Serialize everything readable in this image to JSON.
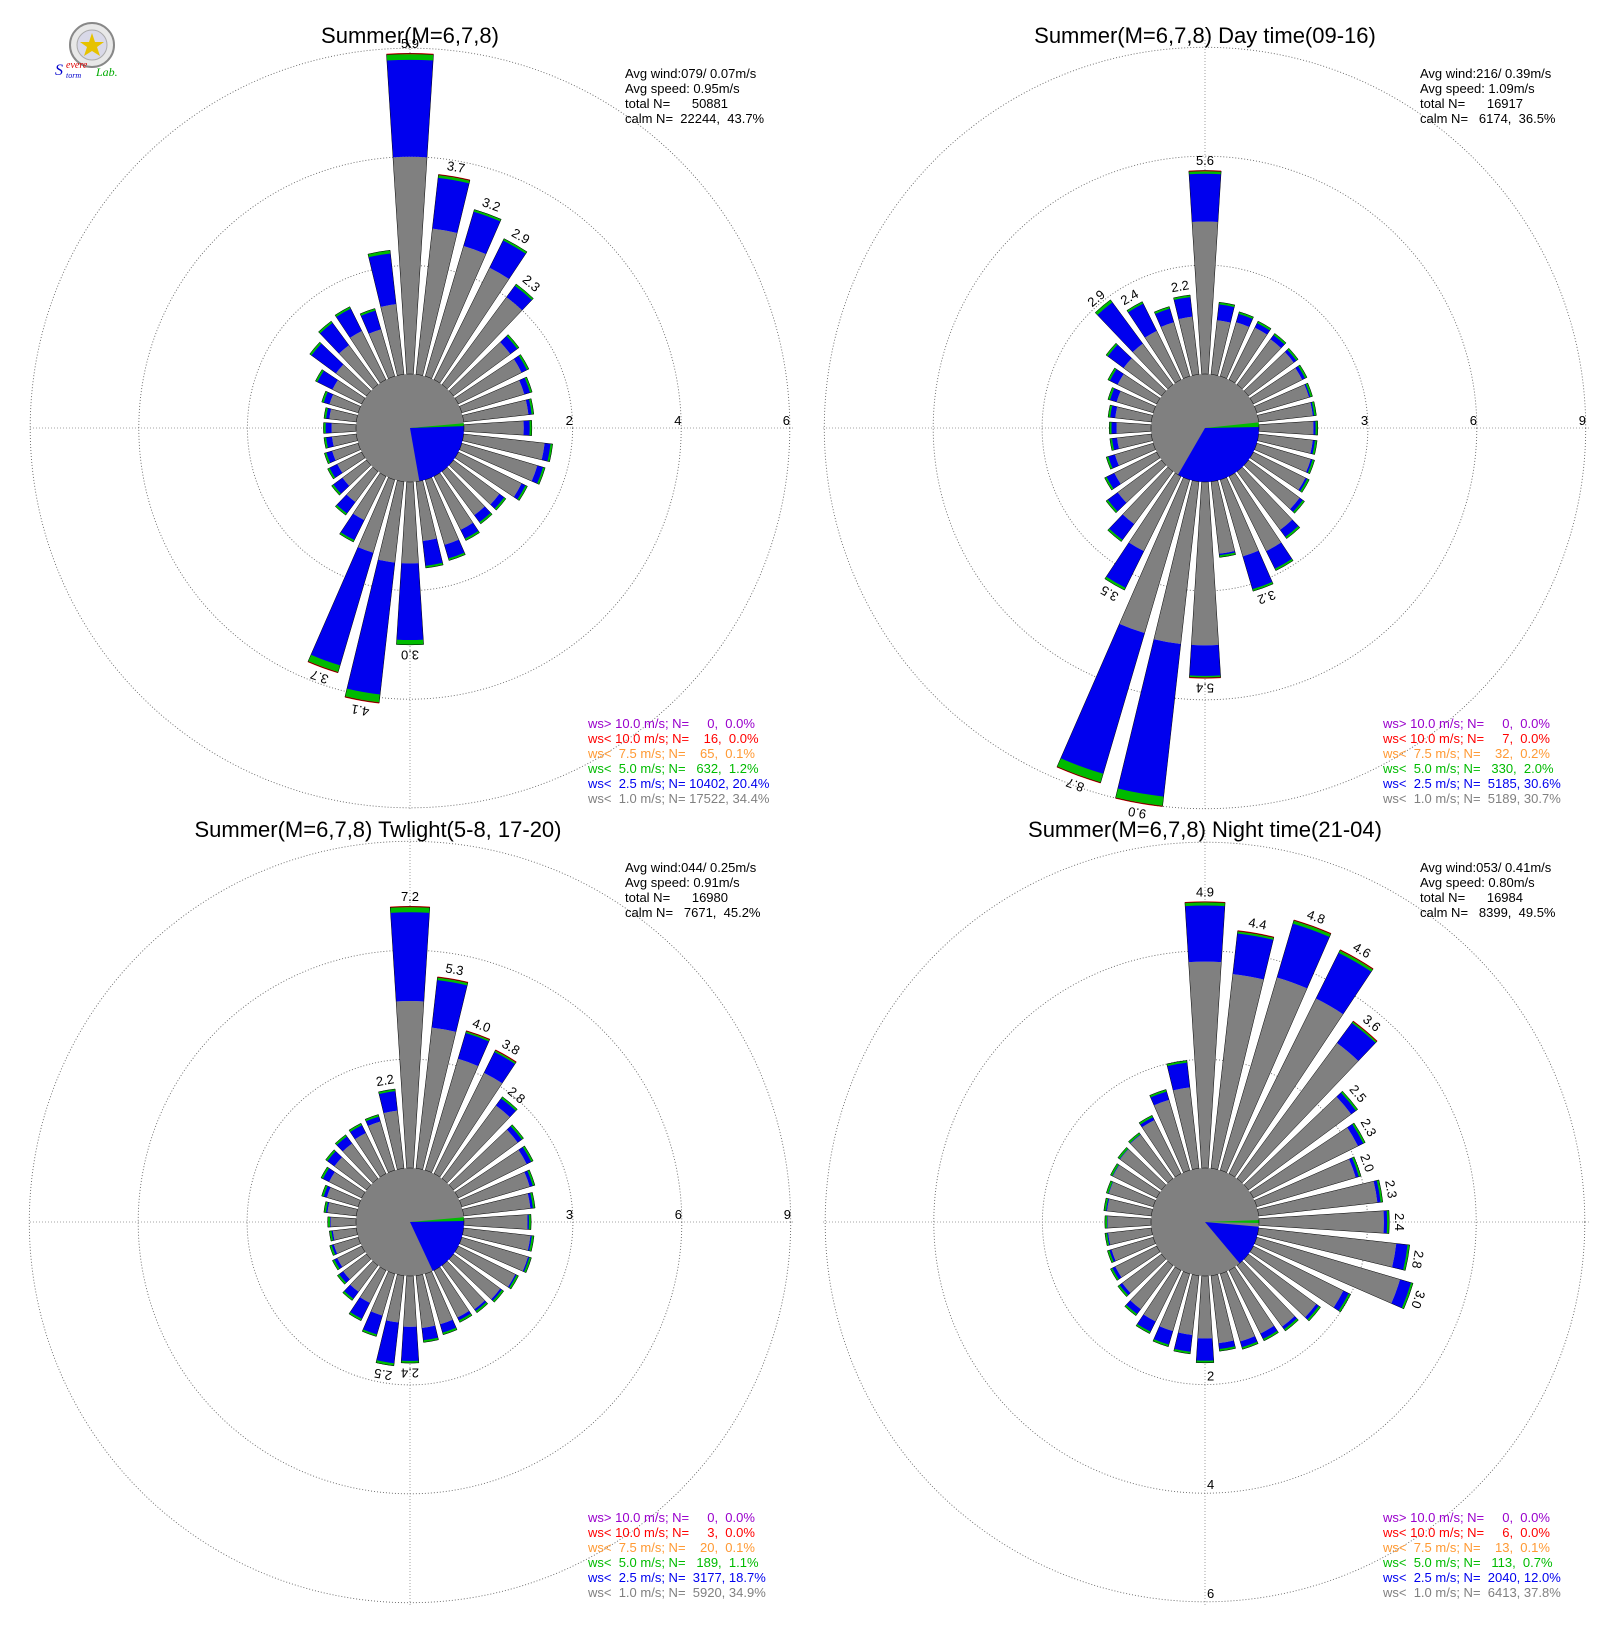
{
  "logo": {
    "text_s": "S",
    "text_evere": "evere",
    "text_torm": "torm",
    "text_lab": "Lab."
  },
  "colors": {
    "gray": "#808080",
    "blue": "#0000ee",
    "green": "#00bb00",
    "orange": "#ff9933",
    "red": "#ff0000",
    "purple": "#9900cc"
  },
  "chart_data": [
    {
      "type": "wind-rose",
      "title": "Summer(M=6,7,8)",
      "center": [
        410,
        428
      ],
      "scale": 54.3,
      "calm_r": 54,
      "rings": [
        2,
        4,
        6
      ],
      "ring_labels": [
        "2",
        "4",
        "6"
      ],
      "calm_wedge": {
        "blue_from": 87,
        "blue_to": 170,
        "green_from": 85,
        "green_to": 88
      },
      "stats": {
        "avg_wind": "Avg wind:079/ 0.07m/s",
        "avg_speed": "Avg speed: 0.95m/s",
        "total": "total N=      50881",
        "calm": "calm N=  22244,  43.7%"
      },
      "legend": [
        "ws> 10.0 m/s; N=     0,  0.0%",
        "ws< 10.0 m/s; N=    16,  0.0%",
        "ws<  7.5 m/s; N=    65,  0.1%",
        "ws<  5.0 m/s; N=   632,  1.2%",
        "ws<  2.5 m/s; N= 10402, 20.4%",
        "ws<  1.0 m/s; N= 17522, 34.4%"
      ],
      "bars": [
        {
          "dir": 0,
          "gray": 4.0,
          "total": 5.9,
          "label": "5.9"
        },
        {
          "dir": 10,
          "gray": 2.7,
          "total": 3.7,
          "label": "3.7"
        },
        {
          "dir": 20,
          "gray": 2.5,
          "total": 3.2,
          "label": "3.2"
        },
        {
          "dir": 30,
          "gray": 2.3,
          "total": 2.9,
          "label": "2.9"
        },
        {
          "dir": 40,
          "gray": 2.0,
          "total": 2.3,
          "label": "2.3"
        },
        {
          "dir": 50,
          "gray": 1.3,
          "total": 1.5
        },
        {
          "dir": 60,
          "gray": 1.3,
          "total": 1.45
        },
        {
          "dir": 70,
          "gray": 1.2,
          "total": 1.35
        },
        {
          "dir": 80,
          "gray": 1.2,
          "total": 1.3
        },
        {
          "dir": 90,
          "gray": 1.1,
          "total": 1.25
        },
        {
          "dir": 100,
          "gray": 1.5,
          "total": 1.65
        },
        {
          "dir": 110,
          "gray": 1.45,
          "total": 1.6
        },
        {
          "dir": 120,
          "gray": 1.3,
          "total": 1.42
        },
        {
          "dir": 130,
          "gray": 1.05,
          "total": 1.2
        },
        {
          "dir": 140,
          "gray": 1.0,
          "total": 1.2
        },
        {
          "dir": 150,
          "gray": 1.1,
          "total": 1.32
        },
        {
          "dir": 160,
          "gray": 1.25,
          "total": 1.55
        },
        {
          "dir": 170,
          "gray": 1.1,
          "total": 1.6
        },
        {
          "dir": 180,
          "gray": 1.5,
          "total": 3.0,
          "label": "3.0"
        },
        {
          "dir": 190,
          "gray": 1.5,
          "total": 4.1,
          "label": "4.1"
        },
        {
          "dir": 200,
          "gray": 1.4,
          "total": 3.7,
          "label": "3.7"
        },
        {
          "dir": 210,
          "gray": 0.9,
          "total": 1.35
        },
        {
          "dir": 220,
          "gray": 0.7,
          "total": 1.0
        },
        {
          "dir": 230,
          "gray": 0.55,
          "total": 0.8
        },
        {
          "dir": 240,
          "gray": 0.5,
          "total": 0.7
        },
        {
          "dir": 250,
          "gray": 0.5,
          "total": 0.65
        },
        {
          "dir": 260,
          "gray": 0.45,
          "total": 0.6
        },
        {
          "dir": 270,
          "gray": 0.45,
          "total": 0.6
        },
        {
          "dir": 280,
          "gray": 0.5,
          "total": 0.6
        },
        {
          "dir": 290,
          "gray": 0.55,
          "total": 0.7
        },
        {
          "dir": 300,
          "gray": 0.6,
          "total": 0.95
        },
        {
          "dir": 310,
          "gray": 0.7,
          "total": 1.3
        },
        {
          "dir": 320,
          "gray": 0.9,
          "total": 1.45
        },
        {
          "dir": 330,
          "gray": 1.0,
          "total": 1.5
        },
        {
          "dir": 340,
          "gray": 0.9,
          "total": 1.3
        },
        {
          "dir": 350,
          "gray": 1.3,
          "total": 2.3
        }
      ]
    },
    {
      "type": "wind-rose",
      "title": "Summer(M=6,7,8) Day time(09-16)",
      "center": [
        1205,
        428
      ],
      "scale": 36.3,
      "calm_r": 54,
      "rings": [
        3,
        6,
        9
      ],
      "ring_labels": [
        "3",
        "6",
        "9"
      ],
      "calm_wedge": {
        "blue_from": 88,
        "blue_to": 210,
        "green_from": 84,
        "green_to": 89
      },
      "stats": {
        "avg_wind": "Avg wind:216/ 0.39m/s",
        "avg_speed": "Avg speed: 1.09m/s",
        "total": "total N=      16917",
        "calm": "calm N=   6174,  36.5%"
      },
      "legend": [
        "ws> 10.0 m/s; N=     0,  0.0%",
        "ws< 10.0 m/s; N=     7,  0.0%",
        "ws<  7.5 m/s; N=    32,  0.2%",
        "ws<  5.0 m/s; N=   330,  2.0%",
        "ws<  2.5 m/s; N=  5185, 30.6%",
        "ws<  1.0 m/s; N=  5189, 30.7%"
      ],
      "bars": [
        {
          "dir": 0,
          "gray": 4.2,
          "total": 5.6,
          "label": "5.6"
        },
        {
          "dir": 10,
          "gray": 1.5,
          "total": 2.0
        },
        {
          "dir": 20,
          "gray": 1.55,
          "total": 1.85
        },
        {
          "dir": 30,
          "gray": 1.6,
          "total": 1.8
        },
        {
          "dir": 40,
          "gray": 1.55,
          "total": 1.75
        },
        {
          "dir": 50,
          "gray": 1.55,
          "total": 1.7
        },
        {
          "dir": 60,
          "gray": 1.5,
          "total": 1.65
        },
        {
          "dir": 70,
          "gray": 1.5,
          "total": 1.6
        },
        {
          "dir": 80,
          "gray": 1.5,
          "total": 1.6
        },
        {
          "dir": 90,
          "gray": 1.5,
          "total": 1.62
        },
        {
          "dir": 100,
          "gray": 1.5,
          "total": 1.62
        },
        {
          "dir": 110,
          "gray": 1.55,
          "total": 1.66
        },
        {
          "dir": 120,
          "gray": 1.6,
          "total": 1.72
        },
        {
          "dir": 130,
          "gray": 1.75,
          "total": 1.92
        },
        {
          "dir": 140,
          "gray": 2.0,
          "total": 2.3
        },
        {
          "dir": 150,
          "gray": 2.3,
          "total": 2.9
        },
        {
          "dir": 160,
          "gray": 2.2,
          "total": 3.2,
          "label": "3.2"
        },
        {
          "dir": 170,
          "gray": 2.0,
          "total": 2.1
        },
        {
          "dir": 180,
          "gray": 4.5,
          "total": 5.4,
          "label": "5.4"
        },
        {
          "dir": 190,
          "gray": 4.5,
          "total": 9.0,
          "label": "9.0"
        },
        {
          "dir": 200,
          "gray": 4.4,
          "total": 8.7,
          "label": "8.7"
        },
        {
          "dir": 210,
          "gray": 2.3,
          "total": 3.5,
          "label": "3.5"
        },
        {
          "dir": 220,
          "gray": 1.8,
          "total": 2.4
        },
        {
          "dir": 230,
          "gray": 1.5,
          "total": 1.9
        },
        {
          "dir": 240,
          "gray": 1.3,
          "total": 1.6
        },
        {
          "dir": 250,
          "gray": 1.1,
          "total": 1.35
        },
        {
          "dir": 260,
          "gray": 0.95,
          "total": 1.15
        },
        {
          "dir": 270,
          "gray": 0.95,
          "total": 1.15
        },
        {
          "dir": 280,
          "gray": 1.0,
          "total": 1.2
        },
        {
          "dir": 290,
          "gray": 1.05,
          "total": 1.3
        },
        {
          "dir": 300,
          "gray": 1.2,
          "total": 1.5
        },
        {
          "dir": 310,
          "gray": 1.3,
          "total": 1.9
        },
        {
          "dir": 320,
          "gray": 1.4,
          "total": 2.9,
          "label": "2.9"
        },
        {
          "dir": 330,
          "gray": 1.5,
          "total": 2.4,
          "label": "2.4"
        },
        {
          "dir": 340,
          "gray": 1.55,
          "total": 2.0
        },
        {
          "dir": 350,
          "gray": 1.6,
          "total": 2.2,
          "label": "2.2"
        }
      ]
    },
    {
      "type": "wind-rose",
      "title": "Summer(M=6,7,8) Twlight(5-8, 17-20)",
      "center": [
        410,
        1222
      ],
      "scale": 36.3,
      "calm_r": 54,
      "rings": [
        3,
        6,
        9
      ],
      "ring_labels": [
        "3",
        "6",
        "9"
      ],
      "calm_wedge": {
        "blue_from": 88,
        "blue_to": 155,
        "green_from": 85,
        "green_to": 89
      },
      "stats": {
        "avg_wind": "Avg wind:044/ 0.25m/s",
        "avg_speed": "Avg speed: 0.91m/s",
        "total": "total N=      16980",
        "calm": "calm N=   7671,  45.2%"
      },
      "legend": [
        "ws> 10.0 m/s; N=     0,  0.0%",
        "ws< 10.0 m/s; N=     3,  0.0%",
        "ws<  7.5 m/s; N=    20,  0.1%",
        "ws<  5.0 m/s; N=   189,  1.1%",
        "ws<  2.5 m/s; N=  3177, 18.7%",
        "ws<  1.0 m/s; N=  5920, 34.9%"
      ],
      "bars": [
        {
          "dir": 0,
          "gray": 4.6,
          "total": 7.2,
          "label": "7.2"
        },
        {
          "dir": 10,
          "gray": 3.9,
          "total": 5.3,
          "label": "5.3"
        },
        {
          "dir": 20,
          "gray": 3.2,
          "total": 4.0,
          "label": "4.0"
        },
        {
          "dir": 30,
          "gray": 3.1,
          "total": 3.8,
          "label": "3.8"
        },
        {
          "dir": 40,
          "gray": 2.5,
          "total": 2.8,
          "label": "2.8"
        },
        {
          "dir": 50,
          "gray": 2.2,
          "total": 2.4
        },
        {
          "dir": 60,
          "gray": 2.1,
          "total": 2.3
        },
        {
          "dir": 70,
          "gray": 1.95,
          "total": 2.1
        },
        {
          "dir": 80,
          "gray": 1.85,
          "total": 1.98
        },
        {
          "dir": 90,
          "gray": 1.75,
          "total": 1.85
        },
        {
          "dir": 100,
          "gray": 1.85,
          "total": 1.95
        },
        {
          "dir": 110,
          "gray": 1.9,
          "total": 2.0
        },
        {
          "dir": 120,
          "gray": 1.75,
          "total": 1.85
        },
        {
          "dir": 130,
          "gray": 1.6,
          "total": 1.72
        },
        {
          "dir": 140,
          "gray": 1.5,
          "total": 1.62
        },
        {
          "dir": 150,
          "gray": 1.45,
          "total": 1.6
        },
        {
          "dir": 160,
          "gray": 1.45,
          "total": 1.75
        },
        {
          "dir": 170,
          "gray": 1.45,
          "total": 1.85
        },
        {
          "dir": 180,
          "gray": 1.4,
          "total": 2.4,
          "label": "2.4"
        },
        {
          "dir": 190,
          "gray": 1.3,
          "total": 2.5,
          "label": "2.5"
        },
        {
          "dir": 200,
          "gray": 1.2,
          "total": 1.8
        },
        {
          "dir": 210,
          "gray": 1.0,
          "total": 1.55
        },
        {
          "dir": 220,
          "gray": 0.9,
          "total": 1.2
        },
        {
          "dir": 230,
          "gray": 0.8,
          "total": 1.0
        },
        {
          "dir": 240,
          "gray": 0.75,
          "total": 0.9
        },
        {
          "dir": 250,
          "gray": 0.7,
          "total": 0.82
        },
        {
          "dir": 260,
          "gray": 0.65,
          "total": 0.75
        },
        {
          "dir": 270,
          "gray": 0.7,
          "total": 0.78
        },
        {
          "dir": 280,
          "gray": 0.8,
          "total": 0.9
        },
        {
          "dir": 290,
          "gray": 0.9,
          "total": 1.05
        },
        {
          "dir": 300,
          "gray": 1.0,
          "total": 1.25
        },
        {
          "dir": 310,
          "gray": 1.1,
          "total": 1.4
        },
        {
          "dir": 320,
          "gray": 1.2,
          "total": 1.5
        },
        {
          "dir": 330,
          "gray": 1.25,
          "total": 1.55
        },
        {
          "dir": 340,
          "gray": 1.4,
          "total": 1.6
        },
        {
          "dir": 350,
          "gray": 1.6,
          "total": 2.2,
          "label": "2.2"
        }
      ]
    },
    {
      "type": "wind-rose",
      "title": "Summer(M=6,7,8) Night time(21-04)",
      "center": [
        1205,
        1222
      ],
      "scale": 54.3,
      "calm_r": 54,
      "rings": [
        2,
        4,
        6
      ],
      "ring_labels": [
        "2",
        "4",
        "6"
      ],
      "ring_label_angle": 180,
      "calm_wedge": {
        "blue_from": 95,
        "blue_to": 140,
        "green_from": 88,
        "green_to": 91
      },
      "stats": {
        "avg_wind": "Avg wind:053/ 0.41m/s",
        "avg_speed": "Avg speed: 0.80m/s",
        "total": "total N=      16984",
        "calm": "calm N=   8399,  49.5%"
      },
      "legend": [
        "ws> 10.0 m/s; N=     0,  0.0%",
        "ws< 10.0 m/s; N=     6,  0.0%",
        "ws<  7.5 m/s; N=    13,  0.1%",
        "ws<  5.0 m/s; N=   113,  0.7%",
        "ws<  2.5 m/s; N=  2040, 12.0%",
        "ws<  1.0 m/s; N=  6413, 37.8%"
      ],
      "bars": [
        {
          "dir": 0,
          "gray": 3.8,
          "total": 4.9,
          "label": "4.9"
        },
        {
          "dir": 10,
          "gray": 3.6,
          "total": 4.4,
          "label": "4.4"
        },
        {
          "dir": 20,
          "gray": 3.7,
          "total": 4.8,
          "label": "4.8"
        },
        {
          "dir": 30,
          "gray": 3.6,
          "total": 4.6,
          "label": "4.6"
        },
        {
          "dir": 40,
          "gray": 3.1,
          "total": 3.6,
          "label": "3.6"
        },
        {
          "dir": 50,
          "gray": 2.35,
          "total": 2.5,
          "label": "2.5"
        },
        {
          "dir": 60,
          "gray": 2.15,
          "total": 2.3,
          "label": "2.3"
        },
        {
          "dir": 70,
          "gray": 1.9,
          "total": 2.0,
          "label": "2.0"
        },
        {
          "dir": 80,
          "gray": 2.2,
          "total": 2.3,
          "label": "2.3"
        },
        {
          "dir": 90,
          "gray": 2.3,
          "total": 2.4,
          "label": "2.4"
        },
        {
          "dir": 100,
          "gray": 2.55,
          "total": 2.8,
          "label": "2.8"
        },
        {
          "dir": 110,
          "gray": 2.75,
          "total": 3.0,
          "label": "3.0"
        },
        {
          "dir": 120,
          "gray": 1.85,
          "total": 2.0
        },
        {
          "dir": 130,
          "gray": 1.55,
          "total": 1.65
        },
        {
          "dir": 140,
          "gray": 1.4,
          "total": 1.5
        },
        {
          "dir": 150,
          "gray": 1.3,
          "total": 1.45
        },
        {
          "dir": 160,
          "gray": 1.3,
          "total": 1.45
        },
        {
          "dir": 170,
          "gray": 1.25,
          "total": 1.4
        },
        {
          "dir": 180,
          "gray": 1.15,
          "total": 1.6
        },
        {
          "dir": 190,
          "gray": 1.1,
          "total": 1.45
        },
        {
          "dir": 200,
          "gray": 1.1,
          "total": 1.4
        },
        {
          "dir": 210,
          "gray": 1.05,
          "total": 1.3
        },
        {
          "dir": 220,
          "gray": 1.0,
          "total": 1.15
        },
        {
          "dir": 230,
          "gray": 0.9,
          "total": 1.0
        },
        {
          "dir": 240,
          "gray": 0.85,
          "total": 0.95
        },
        {
          "dir": 250,
          "gray": 0.8,
          "total": 0.88
        },
        {
          "dir": 260,
          "gray": 0.8,
          "total": 0.86
        },
        {
          "dir": 270,
          "gray": 0.8,
          "total": 0.85
        },
        {
          "dir": 280,
          "gray": 0.82,
          "total": 0.88
        },
        {
          "dir": 290,
          "gray": 0.85,
          "total": 0.9
        },
        {
          "dir": 300,
          "gray": 0.9,
          "total": 0.95
        },
        {
          "dir": 310,
          "gray": 0.95,
          "total": 1.0
        },
        {
          "dir": 320,
          "gray": 1.0,
          "total": 1.05
        },
        {
          "dir": 330,
          "gray": 1.1,
          "total": 1.2
        },
        {
          "dir": 340,
          "gray": 1.35,
          "total": 1.55
        },
        {
          "dir": 350,
          "gray": 1.5,
          "total": 2.0
        }
      ]
    }
  ]
}
